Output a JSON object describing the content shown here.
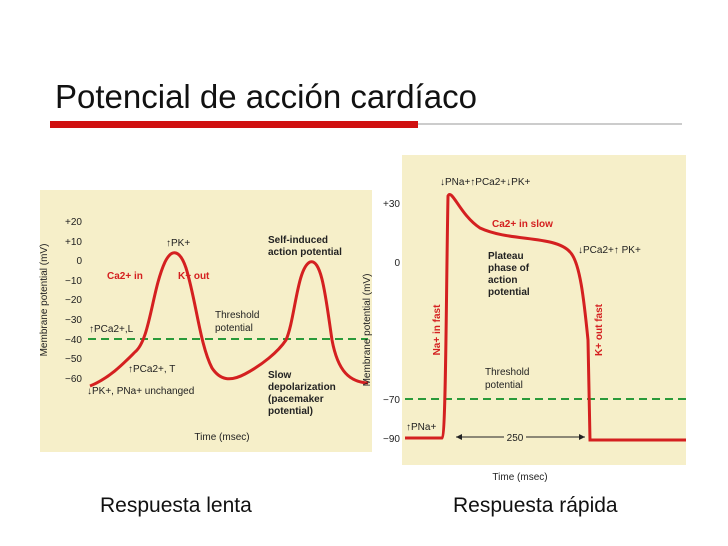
{
  "title": "Potencial de acción cardíaco",
  "left_figure": {
    "y_axis_label": "Membrane potential (mV)",
    "y_ticks": [
      "+20",
      "+10",
      "0",
      "−10",
      "−20",
      "−30",
      "−40",
      "−50",
      "−60"
    ],
    "x_axis_label": "Time (msec)",
    "annotations": {
      "pk_up": "↑PK+",
      "self_induced": [
        "Self-induced",
        "action potential"
      ],
      "ca_in": "Ca2+ in",
      "k_out": "K+ out",
      "pca_l": "↑PCa2+,L",
      "threshold": [
        "Threshold",
        "potential"
      ],
      "pca_t": "↑PCa2+, T",
      "pk_pna": "↓PK+, PNa+ unchanged",
      "slow_depol": [
        "Slow",
        "depolarization",
        "(pacemaker",
        "potential)"
      ]
    },
    "caption": "Respuesta lenta"
  },
  "right_figure": {
    "y_axis_label": "Membrane potential (mV)",
    "y_ticks": [
      "+30",
      "0",
      "−70",
      "−90"
    ],
    "x_axis_label": "Time (msec)",
    "annotations": {
      "top": "↓PNa+↑PCa2+↓PK+",
      "ca_slow": "Ca2+ in slow",
      "plateau": [
        "Plateau",
        "phase of",
        "action",
        "potential"
      ],
      "pca_pk": "↓PCa2+↑ PK+",
      "na_fast": "Na+ in fast",
      "k_fast": "K+ out fast",
      "threshold": [
        "Threshold",
        "potential"
      ],
      "pna_up": "↑PNa+",
      "duration": "250"
    },
    "caption": "Respuesta rápida"
  }
}
